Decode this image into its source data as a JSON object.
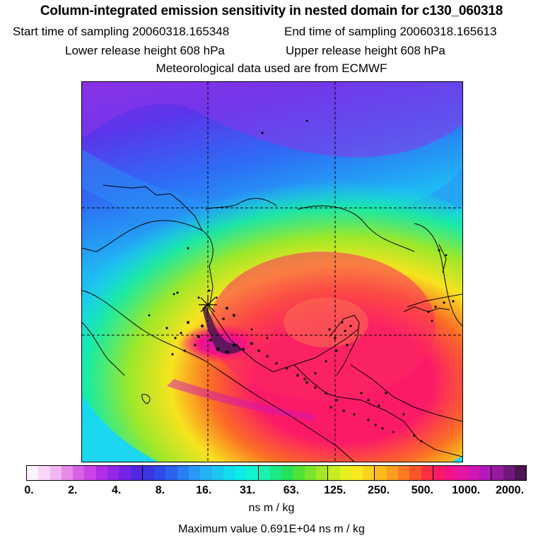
{
  "header": {
    "title": "Column-integrated emission sensitivity in nested domain for c130_060318",
    "start_label": "Start time of sampling 20060318.165348",
    "end_label": "End time of sampling 20060318.165613",
    "lower_label": "Lower release height  608 hPa",
    "upper_label": "Upper release height  608 hPa",
    "met_label": "Meteorological data used are from ECMWF"
  },
  "map": {
    "receptor_marker": "asterisk-icon",
    "gridlines": "dashed"
  },
  "colorbar": {
    "swatch_colors": [
      "#fdf3fd",
      "#f9d6f9",
      "#f0b7f3",
      "#e68be9",
      "#d862e6",
      "#c943e6",
      "#b12ee6",
      "#9626e6",
      "#7524e3",
      "#5228df",
      "#3a36e0",
      "#2e4ae8",
      "#2d62f0",
      "#2b7ef5",
      "#2a99f6",
      "#25b2f5",
      "#1dc7f2",
      "#12dcee",
      "#0cece6",
      "#12f4cf",
      "#1bf2ad",
      "#1cea86",
      "#25e25c",
      "#4ee238",
      "#7be42c",
      "#a5e828",
      "#c8ec24",
      "#e6f021",
      "#f8e91f",
      "#fbd31d",
      "#fbb91c",
      "#fb9d20",
      "#fb7a24",
      "#fb5427",
      "#fb2f40",
      "#fb1a68",
      "#f41289",
      "#e614a2",
      "#d116b3",
      "#b619b9",
      "#951a9e",
      "#6e1a78",
      "#4b1652"
    ],
    "boundary_indices": [
      9,
      19,
      25,
      29,
      34,
      39
    ],
    "tick_labels": [
      "0.",
      "2.",
      "4.",
      "8.",
      "16.",
      "31.",
      "63.",
      "125.",
      "250.",
      "500.",
      "1000.",
      "2000."
    ],
    "unit_label": "ns m / kg",
    "max_label": "Maximum value  0.691E+04 ns m / kg"
  }
}
